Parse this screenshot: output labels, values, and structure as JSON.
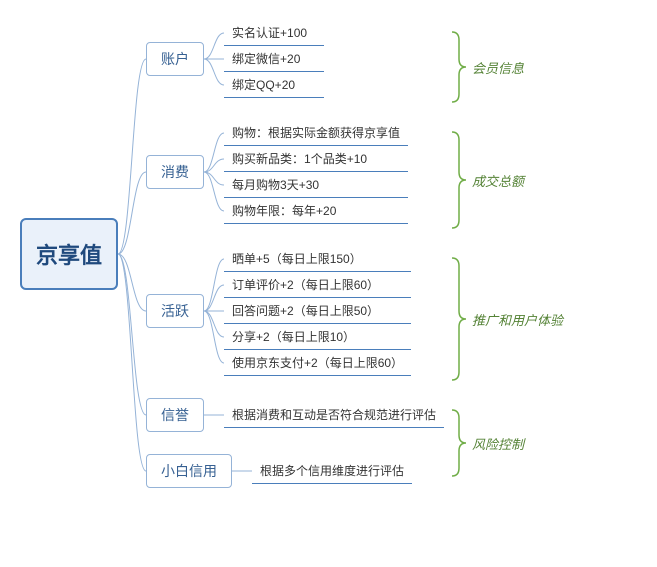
{
  "type": "tree",
  "colors": {
    "root_border": "#4a7ebb",
    "root_text": "#1f497d",
    "root_bg": "#eaf1fa",
    "cat_border": "#95b3d7",
    "cat_text": "#366092",
    "cat_bg": "#ffffff",
    "item_underline": "#4a7ebb",
    "item_text": "#333333",
    "connector": "#95b3d7",
    "brace": "#70ad47",
    "group_text": "#548235",
    "background": "#ffffff"
  },
  "fonts": {
    "root_size": 22,
    "cat_size": 14,
    "item_size": 12,
    "group_size": 13
  },
  "root": {
    "label": "京享值"
  },
  "categories": [
    {
      "key": "account",
      "label": "账户",
      "items": [
        {
          "label": "实名认证+100"
        },
        {
          "label": "绑定微信+20"
        },
        {
          "label": "绑定QQ+20"
        }
      ]
    },
    {
      "key": "consume",
      "label": "消费",
      "items": [
        {
          "label": "购物：根据实际金额获得京享值"
        },
        {
          "label": "购买新品类：1个品类+10"
        },
        {
          "label": "每月购物3天+30"
        },
        {
          "label": "购物年限：每年+20"
        }
      ]
    },
    {
      "key": "active",
      "label": "活跃",
      "items": [
        {
          "label": "晒单+5（每日上限150）"
        },
        {
          "label": "订单评价+2（每日上限60）"
        },
        {
          "label": "回答问题+2（每日上限50）"
        },
        {
          "label": "分享+2（每日上限10）"
        },
        {
          "label": "使用京东支付+2（每日上限60）"
        }
      ]
    },
    {
      "key": "reputation",
      "label": "信誉",
      "items": [
        {
          "label": "根据消费和互动是否符合规范进行评估"
        }
      ]
    },
    {
      "key": "credit",
      "label": "小白信用",
      "items": [
        {
          "label": "根据多个信用维度进行评估"
        }
      ]
    }
  ],
  "groups": [
    {
      "key": "g1",
      "label": "会员信息",
      "span_categories": [
        "account"
      ]
    },
    {
      "key": "g2",
      "label": "成交总额",
      "span_categories": [
        "consume"
      ]
    },
    {
      "key": "g3",
      "label": "推广和用户体验",
      "span_categories": [
        "active"
      ]
    },
    {
      "key": "g4",
      "label": "风险控制",
      "span_categories": [
        "reputation",
        "credit"
      ]
    }
  ],
  "layout": {
    "item_row_height": 26,
    "cat_gap": 22,
    "brace_width": 18
  }
}
